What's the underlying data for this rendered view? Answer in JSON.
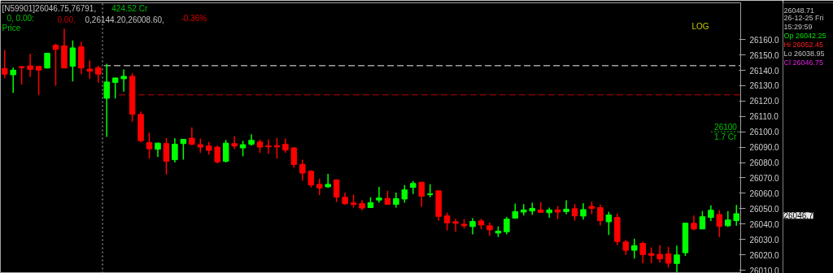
{
  "chart_data": {
    "type": "candlestick",
    "log": true,
    "grid": false,
    "tick_labels": "y",
    "categories": [
      null,
      null,
      null,
      null,
      null,
      null,
      null,
      null,
      null,
      null,
      null,
      null,
      null,
      null,
      null,
      null,
      null,
      null,
      null,
      null,
      null,
      null,
      null,
      null,
      null,
      null,
      null,
      null,
      null,
      null,
      null,
      null,
      null,
      null,
      null,
      null,
      null,
      null,
      null,
      null,
      null,
      null,
      null,
      null,
      null,
      null,
      null,
      null,
      null,
      null,
      null,
      null,
      null,
      null,
      null,
      null,
      null,
      null,
      null,
      null,
      null,
      null,
      null,
      null,
      null,
      null,
      null,
      null,
      null,
      null,
      null,
      null,
      null,
      null,
      null,
      null,
      null,
      null,
      null,
      null,
      null,
      null,
      null,
      null,
      null,
      null,
      null
    ],
    "ohlc": [
      [
        26141.2,
        26153.2,
        26134.9,
        26137.5
      ],
      [
        26137.1,
        26141.8,
        26125.3,
        26140.1
      ],
      [
        26142.4,
        26142.7,
        26130.8,
        26141.7
      ],
      [
        26142.9,
        26150.7,
        26135.8,
        26140.6
      ],
      [
        26142.6,
        26142.7,
        26124.0,
        26140.1
      ],
      [
        26141.5,
        26151.1,
        26141.2,
        26151.1
      ],
      [
        26156.3,
        26157.2,
        26130.0,
        26153.6
      ],
      [
        26156.0,
        26167.2,
        26141.2,
        26141.5
      ],
      [
        26142.7,
        26159.5,
        26132.8,
        26154.6
      ],
      [
        26155.3,
        26158.6,
        26137.5,
        26141.5
      ],
      [
        26140.8,
        26146.4,
        26134.5,
        26139.4
      ],
      [
        26141.7,
        26142.9,
        26131.9,
        26137.5
      ],
      [
        26121.8,
        26144.2,
        26096.6,
        26132.4
      ],
      [
        26132.1,
        26135.4,
        26121.6,
        26135.0
      ],
      [
        26134.5,
        26140.6,
        26126.1,
        26136.1
      ],
      [
        26136.1,
        26138.0,
        26106.6,
        26111.3
      ],
      [
        26111.3,
        26113.2,
        26093.1,
        26094.2
      ],
      [
        26093.0,
        26099.3,
        26082.5,
        26088.9
      ],
      [
        26088.6,
        26093.0,
        26083.6,
        26092.6
      ],
      [
        26092.3,
        26095.8,
        26072.2,
        26080.8
      ],
      [
        26081.8,
        26095.8,
        26080.0,
        26091.9
      ],
      [
        26092.3,
        26095.2,
        26081.8,
        26095.1
      ],
      [
        26095.8,
        26102.9,
        26091.4,
        26091.8
      ],
      [
        26091.6,
        26095.6,
        26086.3,
        26090.0
      ],
      [
        26090.7,
        26093.5,
        26085.1,
        26087.9
      ],
      [
        26090.0,
        26090.9,
        26079.5,
        26080.4
      ],
      [
        26080.8,
        26094.6,
        26080.0,
        26092.6
      ],
      [
        26092.3,
        26097.2,
        26088.8,
        26090.7
      ],
      [
        26089.5,
        26094.2,
        26084.1,
        26091.6
      ],
      [
        26091.9,
        26098.4,
        26090.9,
        26094.4
      ],
      [
        26093.3,
        26094.9,
        26086.3,
        26090.0
      ],
      [
        26090.9,
        26094.9,
        26085.7,
        26090.2
      ],
      [
        26091.0,
        26096.0,
        26082.5,
        26090.2
      ],
      [
        26091.8,
        26095.6,
        26086.3,
        26088.1
      ],
      [
        26089.5,
        26090.0,
        26076.6,
        26078.7
      ],
      [
        26078.8,
        26081.8,
        26068.2,
        26073.1
      ],
      [
        26074.3,
        26075.0,
        26063.8,
        26065.4
      ],
      [
        26065.8,
        26069.4,
        26058.9,
        26063.5
      ],
      [
        26064.2,
        26072.6,
        26063.5,
        26065.8
      ],
      [
        26068.7,
        26069.1,
        26054.2,
        26057.5
      ],
      [
        26057.4,
        26060.4,
        26052.5,
        26053.2
      ],
      [
        26053.7,
        26059.1,
        26050.7,
        26052.7
      ],
      [
        26053.3,
        26055.6,
        26049.0,
        26050.4
      ],
      [
        26050.7,
        26057.4,
        26050.4,
        26053.9
      ],
      [
        26055.6,
        26064.2,
        26053.9,
        26056.9
      ],
      [
        26056.7,
        26061.6,
        26052.5,
        26052.8
      ],
      [
        26052.8,
        26060.4,
        26050.7,
        26056.5
      ],
      [
        26056.3,
        26065.4,
        26053.9,
        26062.2
      ],
      [
        26063.8,
        26068.0,
        26059.5,
        26066.4
      ],
      [
        26067.2,
        26067.2,
        26051.2,
        26058.1
      ],
      [
        26059.1,
        26065.9,
        26057.4,
        26059.6
      ],
      [
        26061.6,
        26061.6,
        26042.3,
        26045.0
      ],
      [
        26045.3,
        26047.4,
        26035.9,
        26040.8
      ],
      [
        26041.5,
        26043.4,
        26035.0,
        26040.5
      ],
      [
        26039.9,
        26043.2,
        26037.1,
        26038.9
      ],
      [
        26038.4,
        26043.9,
        26033.3,
        26041.7
      ],
      [
        26042.0,
        26043.4,
        26036.8,
        26039.4
      ],
      [
        26038.9,
        26041.0,
        26032.4,
        26036.3
      ],
      [
        26034.2,
        26038.5,
        26031.6,
        26035.4
      ],
      [
        26035.0,
        26044.7,
        26033.3,
        26043.2
      ],
      [
        26043.9,
        26053.3,
        26043.4,
        26048.1
      ],
      [
        26047.8,
        26053.0,
        26045.5,
        26049.2
      ],
      [
        26048.5,
        26053.9,
        26046.0,
        26050.2
      ],
      [
        26049.2,
        26054.2,
        26047.3,
        26047.6
      ],
      [
        26047.4,
        26050.7,
        26044.1,
        26049.2
      ],
      [
        26049.2,
        26051.8,
        26043.2,
        26047.8
      ],
      [
        26048.1,
        26055.4,
        26046.4,
        26049.7
      ],
      [
        26050.0,
        26053.0,
        26042.2,
        26045.3
      ],
      [
        26045.2,
        26053.6,
        26042.9,
        26049.4
      ],
      [
        26051.5,
        26054.6,
        26046.4,
        26050.2
      ],
      [
        26050.7,
        26052.5,
        26039.1,
        26042.2
      ],
      [
        26041.5,
        26048.0,
        26032.9,
        26045.9
      ],
      [
        26044.3,
        26046.7,
        26026.5,
        26028.7
      ],
      [
        26028.4,
        26029.8,
        26020.0,
        26023.0
      ],
      [
        26023.0,
        26030.5,
        26017.6,
        26026.0
      ],
      [
        26027.5,
        26028.6,
        26014.6,
        26020.2
      ],
      [
        26020.9,
        26024.9,
        26014.6,
        26019.7
      ],
      [
        26020.4,
        26026.3,
        26015.0,
        26017.4
      ],
      [
        26020.7,
        26025.3,
        26011.8,
        26014.6
      ],
      [
        26014.4,
        26026.0,
        26008.6,
        26020.0
      ],
      [
        26021.4,
        26041.0,
        26019.3,
        26040.6
      ],
      [
        26040.5,
        26045.5,
        26035.9,
        26036.8
      ],
      [
        26036.8,
        26048.5,
        26036.8,
        26044.8
      ],
      [
        26044.3,
        26052.1,
        26042.0,
        26049.0
      ],
      [
        26046.2,
        26049.0,
        26031.6,
        26038.5
      ],
      [
        26038.9,
        26048.5,
        26038.2,
        26042.7
      ],
      [
        26042.25,
        26052.45,
        26038.95,
        26046.75
      ]
    ],
    "colors": [
      "#ff0000",
      "#00ff00",
      "#ff0000",
      "#ff0000",
      "#ff0000",
      "#00ff00",
      "#ff0000",
      "#ff0000",
      "#00ff00",
      "#ff0000",
      "#ff0000",
      "#ff0000",
      "#00ff00",
      "#00ff00",
      "#00ff00",
      "#ff0000",
      "#ff0000",
      "#ff0000",
      "#00ff00",
      "#ff0000",
      "#00ff00",
      "#00ff00",
      "#ff0000",
      "#ff0000",
      "#ff0000",
      "#ff0000",
      "#00ff00",
      "#ff0000",
      "#00ff00",
      "#00ff00",
      "#ff0000",
      "#ff0000",
      "#ff0000",
      "#ff0000",
      "#ff0000",
      "#ff0000",
      "#ff0000",
      "#ff0000",
      "#00ff00",
      "#ff0000",
      "#ff0000",
      "#ff0000",
      "#ff0000",
      "#00ff00",
      "#00ff00",
      "#ff0000",
      "#00ff00",
      "#00ff00",
      "#00ff00",
      "#ff0000",
      "#00ff00",
      "#ff0000",
      "#ff0000",
      "#ff0000",
      "#ff0000",
      "#00ff00",
      "#ff0000",
      "#ff0000",
      "#00ff00",
      "#00ff00",
      "#00ff00",
      "#00ff00",
      "#00ff00",
      "#ff0000",
      "#00ff00",
      "#ff0000",
      "#00ff00",
      "#ff0000",
      "#00ff00",
      "#ff0000",
      "#ff0000",
      "#00ff00",
      "#ff0000",
      "#ff0000",
      "#00ff00",
      "#ff0000",
      "#ff0000",
      "#ff0000",
      "#ff0000",
      "#00ff00",
      "#00ff00",
      "#ff0000",
      "#00ff00",
      "#00ff00",
      "#ff0000",
      "#00ff00",
      "#00ff00"
    ],
    "ylim": [
      26008,
      26184
    ],
    "yticks": [
      {
        "value": 26010,
        "label": "26010.0"
      },
      {
        "value": 26020,
        "label": "26020.0"
      },
      {
        "value": 26030,
        "label": "26030.0"
      },
      {
        "value": 26040,
        "label": "26040.0"
      },
      {
        "value": 26050,
        "label": "26050.0"
      },
      {
        "value": 26060,
        "label": "26060.0"
      },
      {
        "value": 26070,
        "label": "26070.0"
      },
      {
        "value": 26080,
        "label": "26080.0"
      },
      {
        "value": 26090,
        "label": "26090.0"
      },
      {
        "value": 26100,
        "label": "26100.0"
      },
      {
        "value": 26110,
        "label": "26110.0"
      },
      {
        "value": 26120,
        "label": "26120.0"
      },
      {
        "value": 26130,
        "label": "26130.0"
      },
      {
        "value": 26140,
        "label": "26140.0"
      },
      {
        "value": 26150,
        "label": "26150.0"
      },
      {
        "value": 26160,
        "label": "26160.0"
      }
    ],
    "ref_lines": [
      {
        "axis": "y",
        "value": 26143,
        "color": "#a0a0a0",
        "line_style": "dashed"
      },
      {
        "axis": "y",
        "value": 26124,
        "color": "#c00000",
        "line_style": "dashed"
      },
      {
        "axis": "y",
        "value": 26100,
        "label": "26100",
        "color": "#00c000",
        "line_style": "dotted"
      }
    ],
    "annotations": [
      "[N59901]26046.75,76791,",
      "424.52 Cr",
      "0,   0.00:",
      "0.00,",
      "0,26144.20,26008.60,",
      "-0.36%",
      "Price",
      "LOG",
      "1.7 Cr",
      "26048.71",
      "26-12-25 Fri",
      "15:29:59",
      "Op 26042.25",
      "Hi 26052.45",
      "Lo 26038.95",
      "Cl 26046.75",
      "26046.7"
    ]
  }
}
